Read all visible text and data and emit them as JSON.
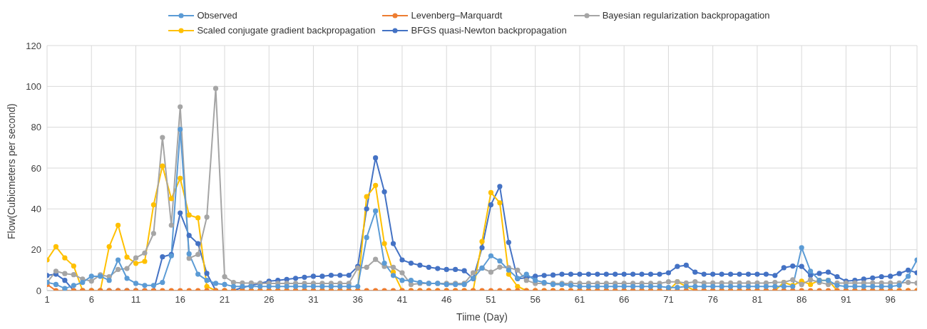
{
  "chart_data": {
    "type": "line",
    "xlabel": "Tiime (Day)",
    "ylabel": "Flow(Cubicmeters per second)",
    "x": [
      1,
      2,
      3,
      4,
      5,
      6,
      7,
      8,
      9,
      10,
      11,
      12,
      13,
      14,
      15,
      16,
      17,
      18,
      19,
      20,
      21,
      22,
      23,
      24,
      25,
      26,
      27,
      28,
      29,
      30,
      31,
      32,
      33,
      34,
      35,
      36,
      37,
      38,
      39,
      40,
      41,
      42,
      43,
      44,
      45,
      46,
      47,
      48,
      49,
      50,
      51,
      52,
      53,
      54,
      55,
      56,
      57,
      58,
      59,
      60,
      61,
      62,
      63,
      64,
      65,
      66,
      67,
      68,
      69,
      70,
      71,
      72,
      73,
      74,
      75,
      76,
      77,
      78,
      79,
      80,
      81,
      82,
      83,
      84,
      85,
      86,
      87,
      88,
      89,
      90,
      91,
      92,
      93,
      94,
      95,
      96,
      97,
      98,
      99
    ],
    "xlim": [
      1,
      99
    ],
    "xticks": [
      1,
      6,
      11,
      16,
      21,
      26,
      31,
      36,
      41,
      46,
      51,
      56,
      61,
      66,
      71,
      76,
      81,
      86,
      91,
      96
    ],
    "ylim": [
      0,
      120
    ],
    "yticks": [
      0,
      20,
      40,
      60,
      80,
      100,
      120
    ],
    "grid": true,
    "legend": "top",
    "marker": "circle",
    "line_style": "solid",
    "series": [
      {
        "name": "Observed",
        "color": "#5b9bd5",
        "values": [
          4,
          3,
          1,
          2.5,
          4,
          7,
          7,
          5,
          15,
          6,
          3.5,
          2.5,
          2.5,
          4,
          17,
          79,
          18,
          8,
          5,
          3.5,
          3,
          2,
          2,
          2,
          2,
          2,
          2,
          2,
          2,
          2,
          2,
          2,
          2,
          2,
          2,
          2,
          26,
          39,
          13.4,
          7.4,
          5,
          5,
          4,
          3.5,
          3.5,
          3,
          3,
          3,
          6,
          11,
          17,
          14.5,
          10,
          6,
          8,
          5,
          4,
          3,
          3,
          2.5,
          2,
          2,
          2,
          2,
          2,
          2,
          2,
          2,
          2,
          2,
          1.5,
          1.5,
          2,
          2,
          2,
          2,
          2,
          2,
          2,
          2,
          2,
          2,
          2,
          2,
          2,
          21,
          9.5,
          5,
          5,
          2.5,
          2,
          2,
          2,
          2,
          2,
          2,
          2.5,
          7,
          15
        ]
      },
      {
        "name": "Levenberg–Marquardt",
        "color": "#ed7d31",
        "values": [
          3,
          0,
          0,
          0,
          0,
          0,
          0,
          0,
          0,
          0,
          0,
          0,
          0,
          0,
          0,
          0,
          0,
          0,
          0,
          0,
          0,
          0,
          0,
          0,
          0,
          0,
          0,
          0,
          0,
          0,
          0,
          0,
          0,
          0,
          0,
          0,
          0,
          0,
          0,
          0,
          0,
          0,
          0,
          0,
          0,
          0,
          0,
          0,
          0,
          0,
          0,
          0,
          0,
          0,
          0,
          0,
          0,
          0,
          0,
          0,
          0,
          0,
          0,
          0,
          0,
          0,
          0,
          0,
          0,
          0,
          0,
          0,
          0,
          0,
          0,
          0,
          0,
          0,
          0,
          0,
          0,
          0,
          0,
          0,
          0,
          0,
          0,
          0,
          0,
          0,
          0,
          0,
          0,
          0,
          0,
          0,
          0,
          0,
          0
        ]
      },
      {
        "name": "Bayesian regularization backpropagation",
        "color": "#a5a5a5",
        "values": [
          4,
          9.5,
          8.3,
          7.8,
          5.6,
          4.6,
          7.7,
          6.8,
          10.3,
          10.8,
          16,
          18.4,
          28,
          75,
          32,
          90,
          15.8,
          17.7,
          36,
          99,
          6.8,
          4,
          3.7,
          3.7,
          3.5,
          3.5,
          3.5,
          3.5,
          3.5,
          3.5,
          3.5,
          3.5,
          3.5,
          3.5,
          3.5,
          11,
          11.4,
          15.3,
          11.8,
          11.4,
          8.7,
          3,
          3.5,
          3.5,
          3.5,
          3.5,
          3.5,
          3.5,
          8.7,
          11,
          9,
          11.5,
          11.2,
          10,
          5,
          3.5,
          3.5,
          3.5,
          3.5,
          3.5,
          3.5,
          3.5,
          3.5,
          3.5,
          3.5,
          3.5,
          3.5,
          3.5,
          3.5,
          3.5,
          4.3,
          4.3,
          3.7,
          4.3,
          3.7,
          3.7,
          3.7,
          3.7,
          3.7,
          3.7,
          3.7,
          3.7,
          4,
          4,
          5.3,
          3,
          5.3,
          4,
          3,
          3.7,
          3.7,
          3.7,
          3.7,
          3.7,
          3.7,
          3.7,
          3.7,
          4,
          3.7
        ]
      },
      {
        "name": "Scaled conjugate gradient backpropagation",
        "color": "#ffc000",
        "values": [
          15,
          21.5,
          16,
          12,
          0,
          0,
          0,
          21.5,
          32,
          16.4,
          13.3,
          14.3,
          42,
          61,
          45,
          55,
          37,
          35.6,
          2,
          0,
          0,
          0,
          0,
          0,
          0,
          0,
          0,
          0,
          0,
          0,
          0,
          0,
          0,
          0,
          0,
          0,
          46,
          51.5,
          23,
          9,
          0,
          0,
          0,
          0,
          0,
          0,
          0,
          0,
          0,
          24,
          48,
          43,
          8,
          2,
          0,
          0,
          0,
          0,
          0,
          0,
          0,
          0,
          0,
          0,
          0,
          0,
          0,
          0,
          0,
          0,
          0,
          4.3,
          2,
          0,
          0,
          0,
          0,
          0,
          0,
          0,
          0,
          0,
          0,
          4,
          2.5,
          4.6,
          3,
          5,
          5,
          0,
          0,
          0,
          0,
          0,
          0,
          0,
          0,
          0,
          0
        ]
      },
      {
        "name": "BFGS quasi-Newton backpropagation",
        "color": "#4472c4",
        "values": [
          7.4,
          8,
          5,
          0,
          0,
          0,
          0,
          0,
          0,
          0,
          0,
          0,
          0,
          16.5,
          17.7,
          38,
          27,
          23,
          8.4,
          0,
          0,
          0,
          1.5,
          2.5,
          3.5,
          4.6,
          5,
          5.5,
          6,
          6.5,
          7,
          7,
          7.5,
          7.5,
          7.5,
          11.8,
          40,
          65,
          48.4,
          23,
          15,
          13.4,
          12.4,
          11.4,
          10.8,
          10.3,
          10.3,
          9.7,
          5.8,
          21,
          42,
          51,
          23.6,
          5.8,
          6.2,
          7,
          7.4,
          7.6,
          8,
          8,
          8,
          8,
          8,
          8,
          8,
          8,
          8,
          8,
          8,
          8,
          8.7,
          11.8,
          12.4,
          9,
          8,
          8,
          8,
          8,
          8,
          8,
          8,
          8,
          7.4,
          11.2,
          12,
          11.8,
          7.4,
          8.4,
          9,
          6.8,
          4.6,
          5,
          5.6,
          6.2,
          6.8,
          7,
          8.3,
          10,
          8.7
        ]
      }
    ]
  }
}
